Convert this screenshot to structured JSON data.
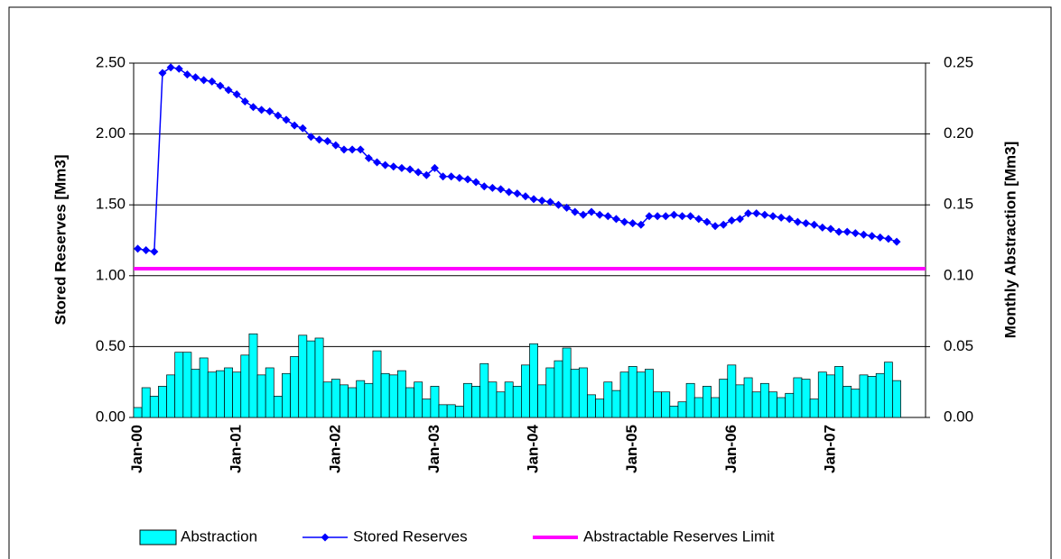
{
  "chart_data": {
    "type": "bar-line",
    "y_label": "Stored Reserves [Mm3]",
    "y2_label": "Monthly Abstraction [Mm3]",
    "categories": [
      "Jan-00",
      null,
      null,
      null,
      null,
      null,
      null,
      null,
      null,
      null,
      null,
      null,
      "Jan-01",
      null,
      null,
      null,
      null,
      null,
      null,
      null,
      null,
      null,
      null,
      null,
      "Jan-02",
      null,
      null,
      null,
      null,
      null,
      null,
      null,
      null,
      null,
      null,
      null,
      "Jan-03",
      null,
      null,
      null,
      null,
      null,
      null,
      null,
      null,
      null,
      null,
      null,
      "Jan-04",
      null,
      null,
      null,
      null,
      null,
      null,
      null,
      null,
      null,
      null,
      null,
      "Jan-05",
      null,
      null,
      null,
      null,
      null,
      null,
      null,
      null,
      null,
      null,
      null,
      "Jan-06",
      null,
      null,
      null,
      null,
      null,
      null,
      null,
      null,
      null,
      null,
      null,
      "Jan-07",
      null,
      null,
      null,
      null,
      null,
      null,
      null,
      null,
      null,
      null,
      null
    ],
    "series": [
      {
        "name": "Abstraction",
        "type": "bar",
        "axis": "y2",
        "color": "#00ffff",
        "values": [
          0.007,
          0.021,
          0.015,
          0.022,
          0.03,
          0.046,
          0.046,
          0.034,
          0.042,
          0.032,
          0.033,
          0.035,
          0.032,
          0.044,
          0.059,
          0.03,
          0.035,
          0.015,
          0.031,
          0.043,
          0.058,
          0.054,
          0.056,
          0.025,
          0.027,
          0.023,
          0.021,
          0.026,
          0.024,
          0.047,
          0.031,
          0.03,
          0.033,
          0.021,
          0.025,
          0.013,
          0.022,
          0.009,
          0.009,
          0.008,
          0.024,
          0.022,
          0.038,
          0.025,
          0.018,
          0.025,
          0.022,
          0.037,
          0.052,
          0.023,
          0.035,
          0.04,
          0.049,
          0.034,
          0.035,
          0.016,
          0.013,
          0.025,
          0.019,
          0.032,
          0.036,
          0.032,
          0.034,
          0.018,
          0.018,
          0.008,
          0.011,
          0.024,
          0.014,
          0.022,
          0.014,
          0.027,
          0.037,
          0.023,
          0.028,
          0.018,
          0.024,
          0.018,
          0.014,
          0.017,
          0.028,
          0.027,
          0.013,
          0.032,
          0.03,
          0.036,
          0.022,
          0.02,
          0.03,
          0.029,
          0.031,
          0.039,
          0.026,
          null,
          null,
          null
        ]
      },
      {
        "name": "Stored Reserves",
        "type": "line",
        "color": "#0000ff",
        "values": [
          1.19,
          1.18,
          1.17,
          2.43,
          2.47,
          2.46,
          2.42,
          2.4,
          2.38,
          2.37,
          2.34,
          2.31,
          2.28,
          2.23,
          2.19,
          2.17,
          2.16,
          2.13,
          2.1,
          2.06,
          2.04,
          1.98,
          1.96,
          1.95,
          1.92,
          1.89,
          1.89,
          1.89,
          1.83,
          1.8,
          1.78,
          1.77,
          1.76,
          1.75,
          1.73,
          1.71,
          1.76,
          1.7,
          1.7,
          1.69,
          1.68,
          1.66,
          1.63,
          1.62,
          1.61,
          1.59,
          1.58,
          1.56,
          1.54,
          1.53,
          1.52,
          1.5,
          1.48,
          1.45,
          1.43,
          1.45,
          1.43,
          1.42,
          1.4,
          1.38,
          1.37,
          1.36,
          1.42,
          1.42,
          1.42,
          1.43,
          1.42,
          1.42,
          1.4,
          1.38,
          1.35,
          1.36,
          1.39,
          1.4,
          1.44,
          1.44,
          1.43,
          1.42,
          1.41,
          1.4,
          1.38,
          1.37,
          1.36,
          1.34,
          1.33,
          1.31,
          1.31,
          1.3,
          1.29,
          1.28,
          1.27,
          1.26,
          1.24,
          null,
          null,
          null
        ]
      },
      {
        "name": "Abstractable Reserves Limit",
        "type": "hline",
        "color": "#ff00ff",
        "value": 1.05
      }
    ],
    "ylim": [
      0,
      2.5
    ],
    "yticks": [
      {
        "value": 0,
        "label": "0.00"
      },
      {
        "value": 0.5,
        "label": "0.50"
      },
      {
        "value": 1,
        "label": "1.00"
      },
      {
        "value": 1.5,
        "label": "1.50"
      },
      {
        "value": 2,
        "label": "2.00"
      },
      {
        "value": 2.5,
        "label": "2.50"
      }
    ],
    "y2lim": [
      0,
      0.25
    ],
    "y2ticks": [
      {
        "value": 0,
        "label": "0.00"
      },
      {
        "value": 0.05,
        "label": "0.05"
      },
      {
        "value": 0.1,
        "label": "0.10"
      },
      {
        "value": 0.15,
        "label": "0.15"
      },
      {
        "value": 0.2,
        "label": "0.20"
      },
      {
        "value": 0.25,
        "label": "0.25"
      }
    ],
    "grid": true,
    "legend": "bottom"
  }
}
